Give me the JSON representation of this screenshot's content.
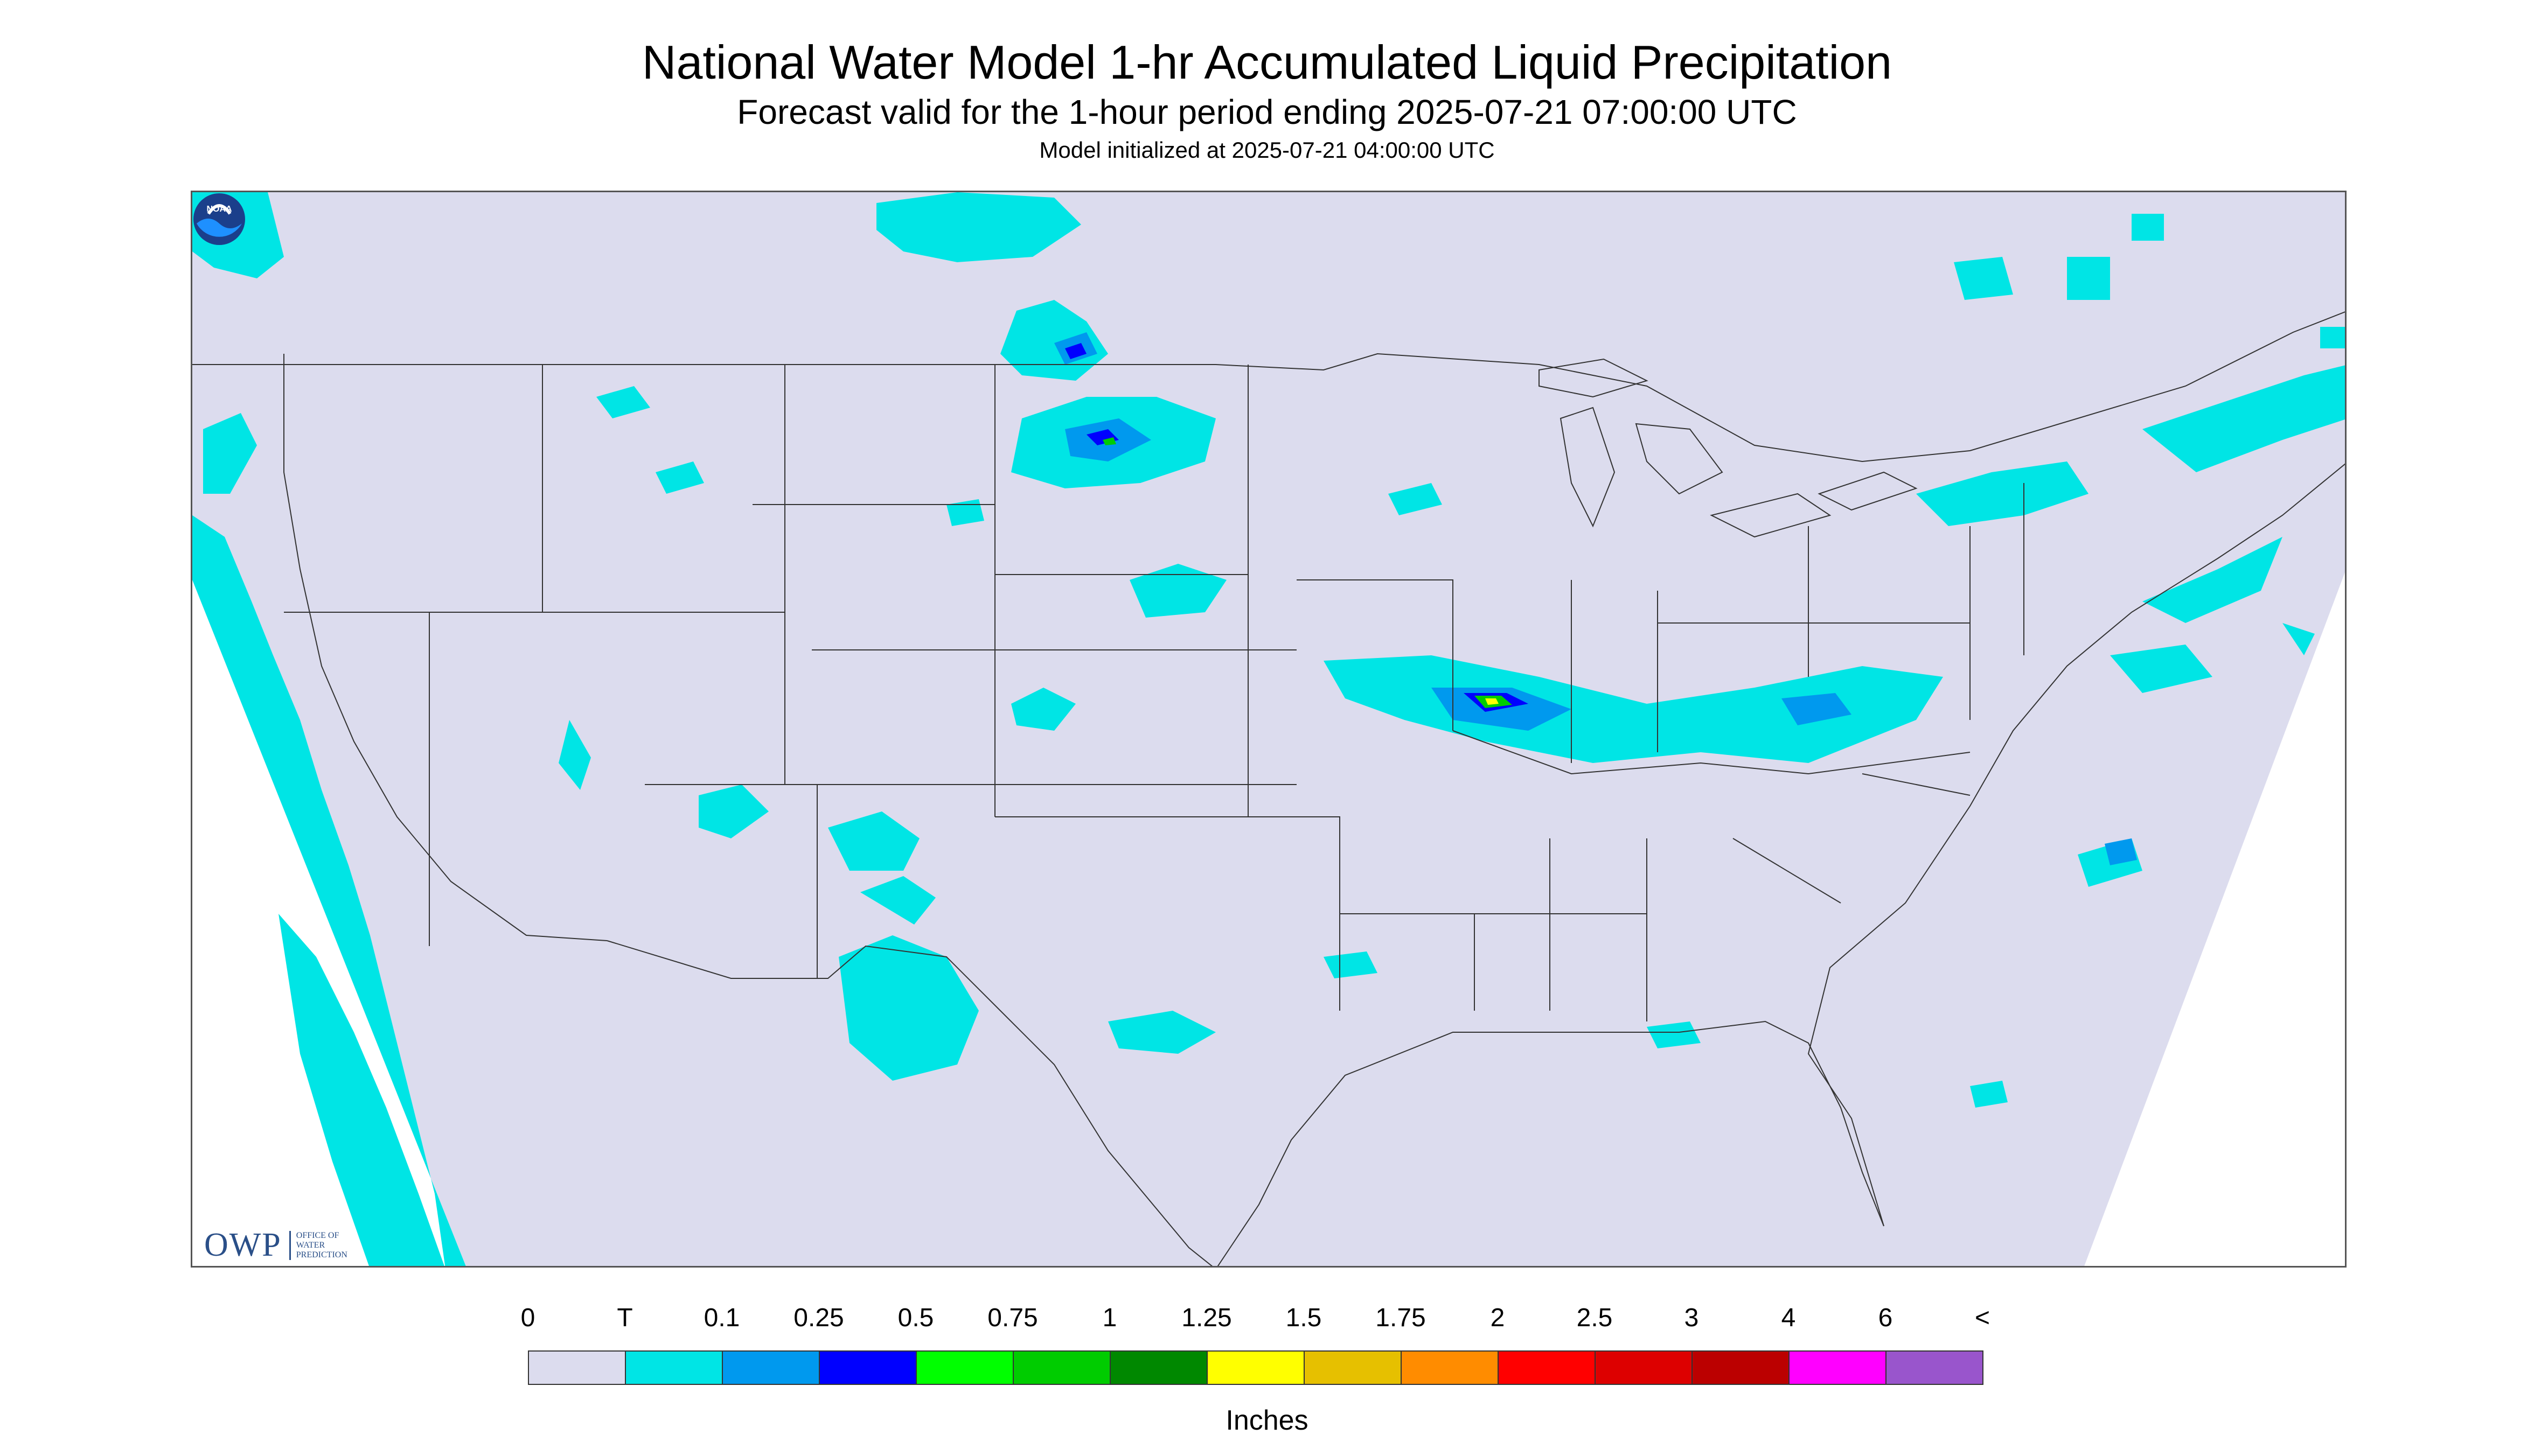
{
  "title": "National Water Model 1-hr Accumulated Liquid Precipitation",
  "subtitle": "Forecast valid for the 1-hour period ending 2025-07-21 07:00:00 UTC",
  "init_text": "Model initialized at 2025-07-21 04:00:00 UTC",
  "legend": {
    "units": "Inches",
    "labels": [
      "0",
      "T",
      "0.1",
      "0.25",
      "0.5",
      "0.75",
      "1",
      "1.25",
      "1.5",
      "1.75",
      "2",
      "2.5",
      "3",
      "4",
      "6",
      "<"
    ],
    "colors": [
      "#dcdcee",
      "#00e5e5",
      "#0099ee",
      "#0000ff",
      "#00ff00",
      "#00cc00",
      "#008800",
      "#ffff00",
      "#e6c000",
      "#ff8c00",
      "#ff0000",
      "#dd0000",
      "#bb0000",
      "#ff00ff",
      "#9955cc"
    ]
  },
  "logos": {
    "owp_mark": "OWP",
    "owp_text": [
      "Office of",
      "Water",
      "Prediction"
    ],
    "noaa_mark": "NOAA"
  },
  "map": {
    "domain_color": "#dcdcee",
    "outside_color": "#ffffff",
    "trace_color": "#00e5e5",
    "light_color": "#0099ee",
    "mid_color": "#0000ff",
    "heavy_color": "#00cc00",
    "peak_color": "#ffff00",
    "border_color": "#333333"
  }
}
